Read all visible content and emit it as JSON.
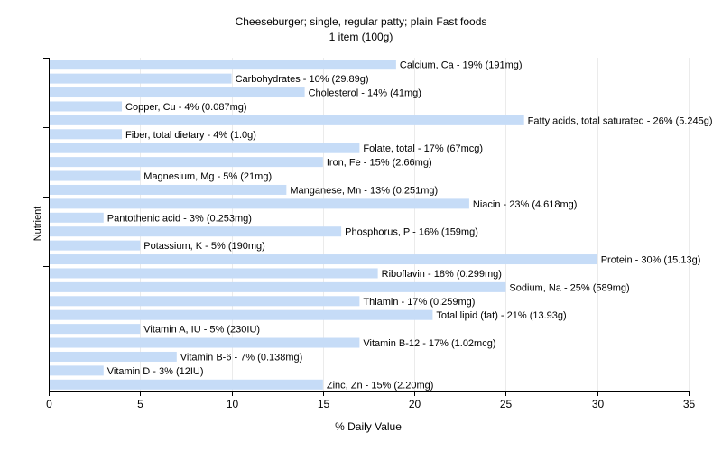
{
  "chart_data": {
    "type": "bar",
    "orientation": "horizontal",
    "title": "Cheeseburger; single, regular patty; plain Fast foods",
    "subtitle": "1 item (100g)",
    "xlabel": "% Daily Value",
    "ylabel": "Nutrient",
    "xlim": [
      0,
      35
    ],
    "xticks": [
      "0",
      "5",
      "10",
      "15",
      "20",
      "25",
      "30",
      "35"
    ],
    "grid": true,
    "bar_color": "#c6dcf7",
    "categories": [
      "Calcium, Ca",
      "Carbohydrates",
      "Cholesterol",
      "Copper, Cu",
      "Fatty acids, total saturated",
      "Fiber, total dietary",
      "Folate, total",
      "Iron, Fe",
      "Magnesium, Mg",
      "Manganese, Mn",
      "Niacin",
      "Pantothenic acid",
      "Phosphorus, P",
      "Potassium, K",
      "Protein",
      "Riboflavin",
      "Sodium, Na",
      "Thiamin",
      "Total lipid (fat)",
      "Vitamin A, IU",
      "Vitamin B-12",
      "Vitamin B-6",
      "Vitamin D",
      "Zinc, Zn"
    ],
    "values": [
      19,
      10,
      14,
      4,
      26,
      4,
      17,
      15,
      5,
      13,
      23,
      3,
      16,
      5,
      30,
      18,
      25,
      17,
      21,
      5,
      17,
      7,
      3,
      15
    ],
    "labels": [
      "Calcium, Ca - 19% (191mg)",
      "Carbohydrates - 10% (29.89g)",
      "Cholesterol - 14% (41mg)",
      "Copper, Cu - 4% (0.087mg)",
      "Fatty acids, total saturated - 26% (5.245g)",
      "Fiber, total dietary - 4% (1.0g)",
      "Folate, total - 17% (67mcg)",
      "Iron, Fe - 15% (2.66mg)",
      "Magnesium, Mg - 5% (21mg)",
      "Manganese, Mn - 13% (0.251mg)",
      "Niacin - 23% (4.618mg)",
      "Pantothenic acid - 3% (0.253mg)",
      "Phosphorus, P - 16% (159mg)",
      "Potassium, K - 5% (190mg)",
      "Protein - 30% (15.13g)",
      "Riboflavin - 18% (0.299mg)",
      "Sodium, Na - 25% (589mg)",
      "Thiamin - 17% (0.259mg)",
      "Total lipid (fat) - 21% (13.93g)",
      "Vitamin A, IU - 5% (230IU)",
      "Vitamin B-12 - 17% (1.02mcg)",
      "Vitamin B-6 - 7% (0.138mg)",
      "Vitamin D - 3% (12IU)",
      "Zinc, Zn - 15% (2.20mg)"
    ]
  }
}
